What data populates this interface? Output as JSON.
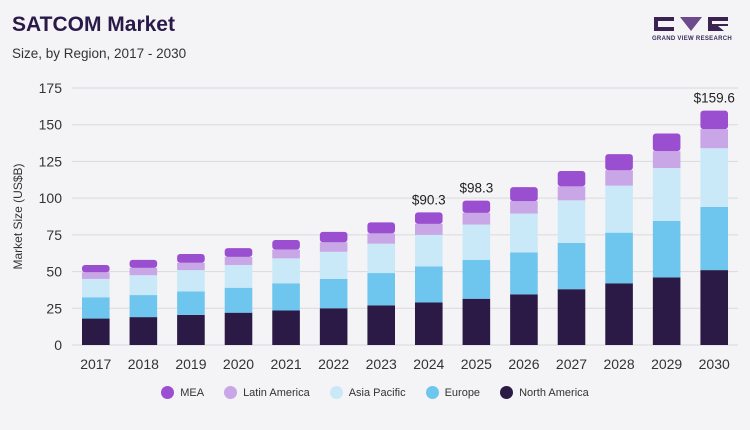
{
  "header": {
    "title": "SATCOM Market",
    "subtitle": "Size, by Region, 2017 - 2030",
    "logo_text": "GRAND VIEW RESEARCH"
  },
  "colors": {
    "MEA": "#9a4fd0",
    "Latin America": "#c9a6e6",
    "Asia Pacific": "#c9e9f8",
    "Europe": "#6ec6ee",
    "North America": "#2a1a45"
  },
  "chart_data": {
    "type": "bar",
    "stacked": true,
    "title": "SATCOM Market",
    "subtitle": "Size, by Region, 2017 - 2030",
    "xlabel": "",
    "ylabel": "Market Size (US$B)",
    "ylim": [
      0,
      175
    ],
    "yticks": [
      0,
      25,
      50,
      75,
      100,
      125,
      150,
      175
    ],
    "grid": true,
    "legend_position": "bottom",
    "categories": [
      "2017",
      "2018",
      "2019",
      "2020",
      "2021",
      "2022",
      "2023",
      "2024",
      "2025",
      "2026",
      "2027",
      "2028",
      "2029",
      "2030"
    ],
    "series": [
      {
        "name": "North America",
        "values": [
          18,
          19,
          20.5,
          22,
          23.5,
          25,
          27,
          29,
          31.5,
          34.5,
          38,
          42,
          46,
          51
        ]
      },
      {
        "name": "Europe",
        "values": [
          14.5,
          15,
          16,
          17,
          18.5,
          20,
          22,
          24.5,
          26.5,
          28.5,
          31.5,
          34.5,
          38.5,
          43
        ]
      },
      {
        "name": "Asia Pacific",
        "values": [
          12.5,
          13.5,
          14.5,
          15.5,
          17,
          18.5,
          20,
          21.5,
          24,
          26.5,
          29,
          32,
          36,
          40
        ]
      },
      {
        "name": "Latin America",
        "values": [
          4.5,
          5,
          5,
          5.5,
          6,
          6.5,
          7,
          7.5,
          8,
          8.5,
          9.5,
          10.5,
          11.5,
          13
        ]
      },
      {
        "name": "MEA",
        "values": [
          5,
          5.5,
          6,
          6,
          6.5,
          7,
          7.5,
          7.8,
          8.3,
          9.5,
          10.5,
          11,
          12,
          12.6
        ]
      }
    ],
    "annotations": [
      {
        "category": "2024",
        "label": "$90.3",
        "value": 90.3
      },
      {
        "category": "2025",
        "label": "$98.3",
        "value": 98.3
      },
      {
        "category": "2030",
        "label": "$159.6",
        "value": 159.6
      }
    ],
    "legend_order": [
      "MEA",
      "Latin America",
      "Asia Pacific",
      "Europe",
      "North America"
    ]
  }
}
